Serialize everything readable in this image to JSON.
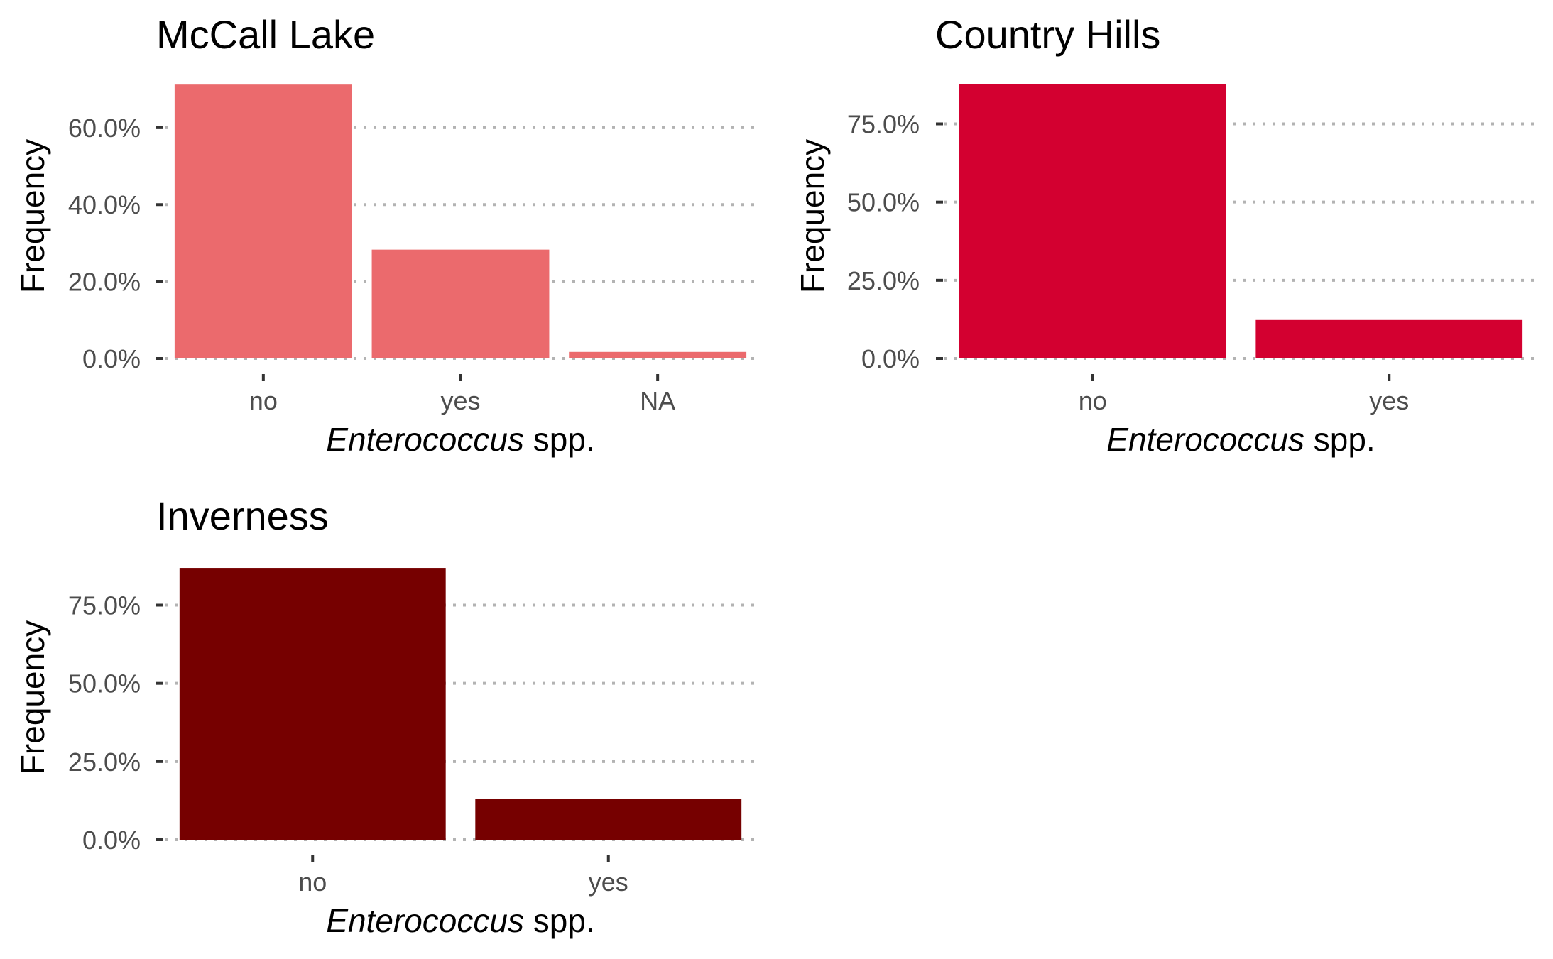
{
  "chart_data": [
    {
      "type": "bar",
      "title": "McCall Lake",
      "xlabel_italic": "Enterococcus",
      "xlabel_rest": " spp.",
      "ylabel": "Frequency",
      "categories": [
        "no",
        "yes",
        "NA"
      ],
      "values": [
        71.2,
        28.3,
        1.7
      ],
      "yticks": [
        0,
        20,
        40,
        60
      ],
      "ytick_labels": [
        "0.0%",
        "20.0%",
        "40.0%",
        "60.0%"
      ],
      "ylim": [
        0,
        74
      ],
      "color": "#EB6A6D",
      "grid": "horizontal-dotted",
      "legend": "none"
    },
    {
      "type": "bar",
      "title": "Country Hills",
      "xlabel_italic": "Enterococcus",
      "xlabel_rest": " spp.",
      "ylabel": "Frequency",
      "categories": [
        "no",
        "yes"
      ],
      "values": [
        87.7,
        12.3
      ],
      "yticks": [
        0,
        25,
        50,
        75
      ],
      "ytick_labels": [
        "0.0%",
        "25.0%",
        "50.0%",
        "75.0%"
      ],
      "ylim": [
        0,
        91
      ],
      "color": "#D30030",
      "grid": "horizontal-dotted",
      "legend": "none"
    },
    {
      "type": "bar",
      "title": "Inverness",
      "xlabel_italic": "Enterococcus",
      "xlabel_rest": " spp.",
      "ylabel": "Frequency",
      "categories": [
        "no",
        "yes"
      ],
      "values": [
        86.9,
        13.1
      ],
      "yticks": [
        0,
        25,
        50,
        75
      ],
      "ytick_labels": [
        "0.0%",
        "25.0%",
        "50.0%",
        "75.0%"
      ],
      "ylim": [
        0,
        91
      ],
      "color": "#760000",
      "grid": "horizontal-dotted",
      "legend": "none"
    }
  ]
}
